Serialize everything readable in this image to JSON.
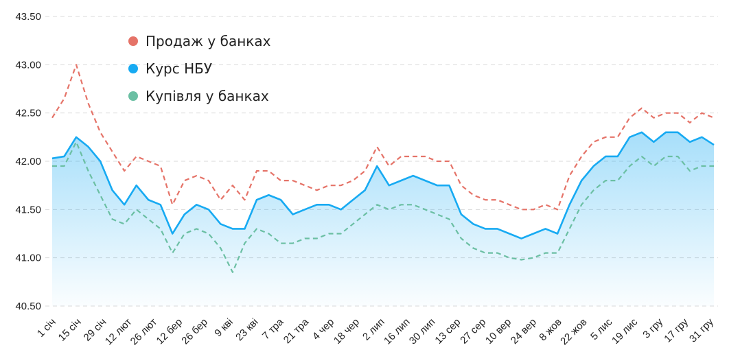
{
  "chart_data": {
    "type": "line",
    "title": "",
    "xlabel": "",
    "ylabel": "",
    "ylim": [
      40.5,
      43.5
    ],
    "y_ticks": [
      "43.50",
      "43.00",
      "42.50",
      "42.00",
      "41.50",
      "41.00",
      "40.50"
    ],
    "x_ticks": [
      "1 січ",
      "15 січ",
      "29 січ",
      "12 лют",
      "26 лют",
      "12 бер",
      "26 бер",
      "9 кві",
      "23 кві",
      "7 тра",
      "21 тра",
      "4 чер",
      "18 чер",
      "2 лип",
      "16 лип",
      "30 лип",
      "13 сер",
      "27 сер",
      "10 вер",
      "24 вер",
      "8 жов",
      "22 жов",
      "5 лис",
      "19 лис",
      "3 гру",
      "17 гру",
      "31 гру"
    ],
    "grid": true,
    "legend_position": "top-left",
    "series": [
      {
        "name": "Продаж у банках",
        "color": "#e57368",
        "style": "dashed",
        "values": [
          42.45,
          42.65,
          43.0,
          42.6,
          42.3,
          42.1,
          41.9,
          42.05,
          42.0,
          41.95,
          41.55,
          41.8,
          41.85,
          41.8,
          41.6,
          41.75,
          41.6,
          41.9,
          41.9,
          41.8,
          41.8,
          41.75,
          41.7,
          41.75,
          41.75,
          41.8,
          41.9,
          42.15,
          41.95,
          42.05,
          42.05,
          42.05,
          42.0,
          42.0,
          41.75,
          41.65,
          41.6,
          41.6,
          41.55,
          41.5,
          41.5,
          41.55,
          41.5,
          41.85,
          42.05,
          42.2,
          42.25,
          42.25,
          42.45,
          42.55,
          42.45,
          42.5,
          42.5,
          42.4,
          42.5,
          42.45
        ]
      },
      {
        "name": "Курс НБУ",
        "color": "#17aaf2",
        "style": "solid",
        "values": [
          42.03,
          42.05,
          42.25,
          42.15,
          42.0,
          41.7,
          41.55,
          41.75,
          41.6,
          41.55,
          41.25,
          41.45,
          41.55,
          41.5,
          41.35,
          41.3,
          41.3,
          41.6,
          41.65,
          41.6,
          41.45,
          41.5,
          41.55,
          41.55,
          41.5,
          41.6,
          41.7,
          41.95,
          41.75,
          41.8,
          41.85,
          41.8,
          41.75,
          41.75,
          41.45,
          41.35,
          41.3,
          41.3,
          41.25,
          41.2,
          41.25,
          41.3,
          41.25,
          41.55,
          41.8,
          41.95,
          42.05,
          42.05,
          42.25,
          42.3,
          42.2,
          42.3,
          42.3,
          42.2,
          42.25,
          42.17
        ]
      },
      {
        "name": "Купівля у банках",
        "color": "#6bbfa3",
        "style": "dashed",
        "values": [
          41.95,
          41.95,
          42.2,
          41.9,
          41.65,
          41.4,
          41.35,
          41.5,
          41.4,
          41.3,
          41.05,
          41.25,
          41.3,
          41.25,
          41.1,
          40.85,
          41.15,
          41.3,
          41.25,
          41.15,
          41.15,
          41.2,
          41.2,
          41.25,
          41.25,
          41.35,
          41.45,
          41.55,
          41.5,
          41.55,
          41.55,
          41.5,
          41.45,
          41.4,
          41.2,
          41.1,
          41.05,
          41.05,
          41.0,
          40.98,
          41.0,
          41.05,
          41.05,
          41.3,
          41.55,
          41.7,
          41.8,
          41.8,
          41.95,
          42.05,
          41.95,
          42.05,
          42.05,
          41.9,
          41.95,
          41.95
        ]
      }
    ]
  }
}
